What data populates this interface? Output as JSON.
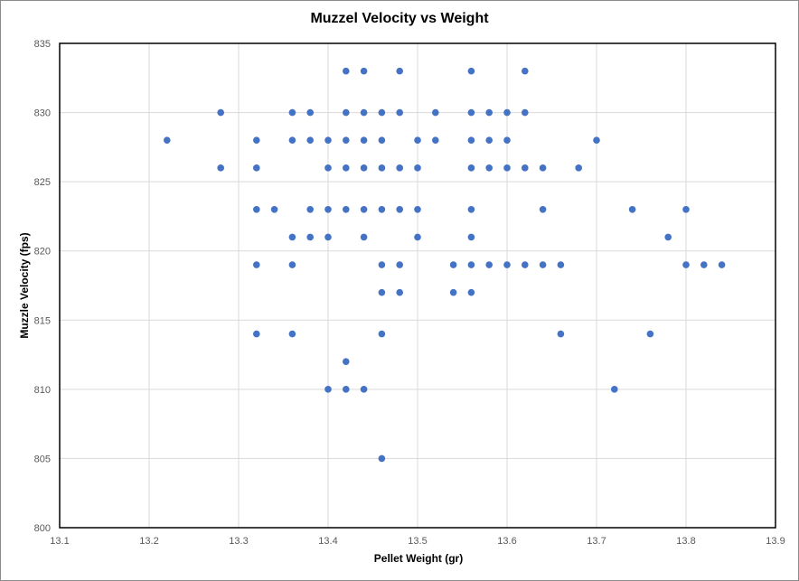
{
  "chart_data": {
    "type": "scatter",
    "title": "Muzzel Velocity vs Weight",
    "xlabel": "Pellet Weight (gr)",
    "ylabel": "Muzzle Velocity (fps)",
    "xlim": [
      13.1,
      13.9
    ],
    "ylim": [
      800,
      835
    ],
    "x_ticks": [
      "13.1",
      "13.2",
      "13.3",
      "13.4",
      "13.5",
      "13.6",
      "13.7",
      "13.8",
      "13.9"
    ],
    "y_ticks": [
      "800",
      "805",
      "810",
      "815",
      "820",
      "825",
      "830",
      "835"
    ],
    "grid": true,
    "legend": "none",
    "marker_color": "#4472C4",
    "series": [
      {
        "points": [
          [
            13.22,
            828
          ],
          [
            13.28,
            830
          ],
          [
            13.28,
            826
          ],
          [
            13.32,
            828
          ],
          [
            13.32,
            826
          ],
          [
            13.32,
            823
          ],
          [
            13.32,
            819
          ],
          [
            13.32,
            814
          ],
          [
            13.34,
            823
          ],
          [
            13.36,
            830
          ],
          [
            13.36,
            828
          ],
          [
            13.36,
            821
          ],
          [
            13.36,
            819
          ],
          [
            13.36,
            814
          ],
          [
            13.38,
            830
          ],
          [
            13.38,
            828
          ],
          [
            13.38,
            823
          ],
          [
            13.38,
            821
          ],
          [
            13.4,
            828
          ],
          [
            13.4,
            826
          ],
          [
            13.4,
            823
          ],
          [
            13.4,
            821
          ],
          [
            13.4,
            810
          ],
          [
            13.42,
            833
          ],
          [
            13.42,
            830
          ],
          [
            13.42,
            828
          ],
          [
            13.42,
            826
          ],
          [
            13.42,
            823
          ],
          [
            13.42,
            812
          ],
          [
            13.42,
            810
          ],
          [
            13.44,
            833
          ],
          [
            13.44,
            830
          ],
          [
            13.44,
            828
          ],
          [
            13.44,
            826
          ],
          [
            13.44,
            823
          ],
          [
            13.44,
            821
          ],
          [
            13.44,
            810
          ],
          [
            13.46,
            830
          ],
          [
            13.46,
            828
          ],
          [
            13.46,
            826
          ],
          [
            13.46,
            823
          ],
          [
            13.46,
            819
          ],
          [
            13.46,
            817
          ],
          [
            13.46,
            814
          ],
          [
            13.46,
            805
          ],
          [
            13.48,
            833
          ],
          [
            13.48,
            830
          ],
          [
            13.48,
            826
          ],
          [
            13.48,
            823
          ],
          [
            13.48,
            819
          ],
          [
            13.48,
            817
          ],
          [
            13.5,
            828
          ],
          [
            13.5,
            826
          ],
          [
            13.5,
            823
          ],
          [
            13.5,
            821
          ],
          [
            13.52,
            830
          ],
          [
            13.52,
            828
          ],
          [
            13.54,
            819
          ],
          [
            13.54,
            817
          ],
          [
            13.56,
            833
          ],
          [
            13.56,
            830
          ],
          [
            13.56,
            828
          ],
          [
            13.56,
            826
          ],
          [
            13.56,
            823
          ],
          [
            13.56,
            821
          ],
          [
            13.56,
            819
          ],
          [
            13.56,
            817
          ],
          [
            13.58,
            830
          ],
          [
            13.58,
            828
          ],
          [
            13.58,
            826
          ],
          [
            13.58,
            819
          ],
          [
            13.6,
            830
          ],
          [
            13.6,
            828
          ],
          [
            13.6,
            826
          ],
          [
            13.6,
            819
          ],
          [
            13.62,
            833
          ],
          [
            13.62,
            830
          ],
          [
            13.62,
            826
          ],
          [
            13.62,
            819
          ],
          [
            13.64,
            826
          ],
          [
            13.64,
            823
          ],
          [
            13.64,
            819
          ],
          [
            13.66,
            819
          ],
          [
            13.66,
            814
          ],
          [
            13.68,
            826
          ],
          [
            13.7,
            828
          ],
          [
            13.72,
            810
          ],
          [
            13.74,
            823
          ],
          [
            13.76,
            814
          ],
          [
            13.78,
            821
          ],
          [
            13.8,
            823
          ],
          [
            13.8,
            819
          ],
          [
            13.82,
            819
          ],
          [
            13.84,
            819
          ]
        ]
      }
    ]
  }
}
